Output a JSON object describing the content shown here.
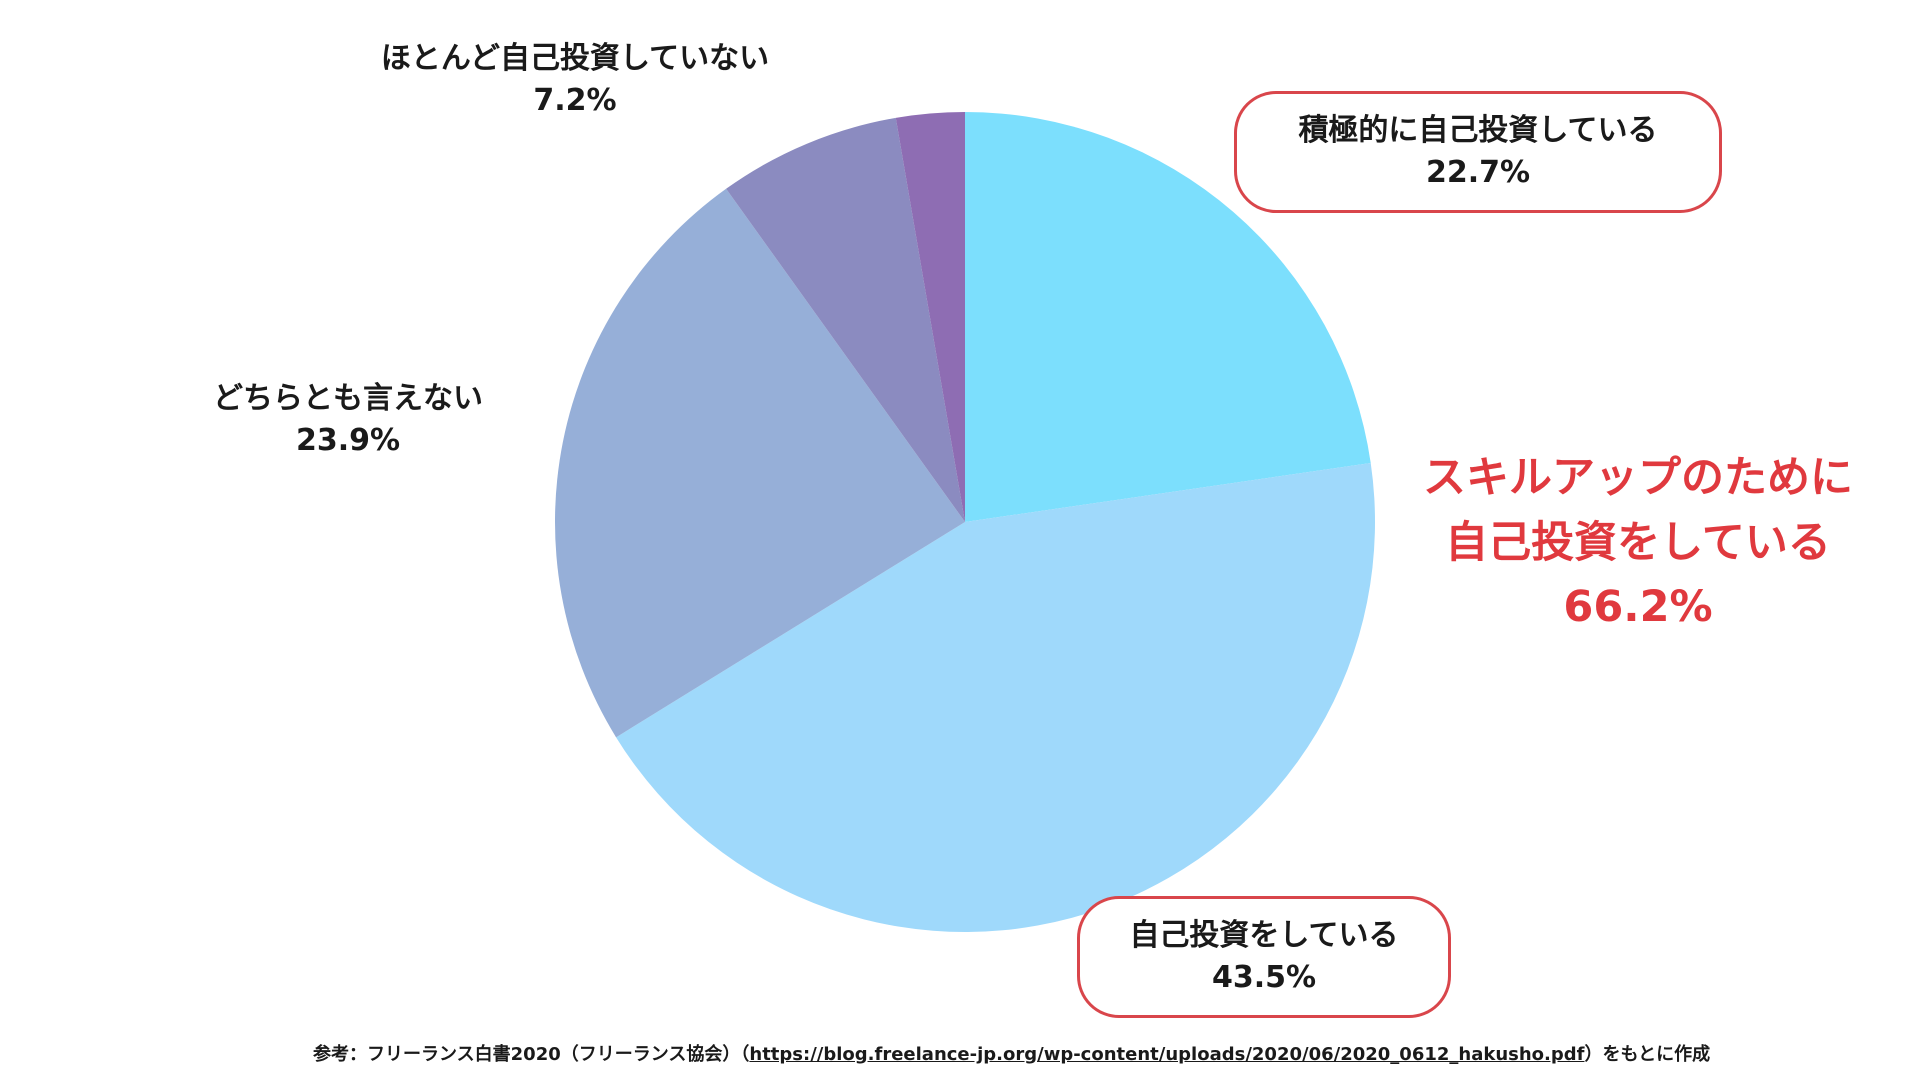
{
  "chart_data": {
    "type": "pie",
    "start": "12 o'clock",
    "direction": "clockwise",
    "slices": [
      {
        "label": "積極的に自己投資している",
        "value": 22.7,
        "value_label": "22.7%",
        "color": "#7cdffd"
      },
      {
        "label": "自己投資をしている",
        "value": 43.5,
        "value_label": "43.5%",
        "color": "#9fd9fb"
      },
      {
        "label": "どちらとも言えない",
        "value": 23.9,
        "value_label": "23.9%",
        "color": "#96afd8"
      },
      {
        "label": "ほとんど自己投資していない",
        "value": 7.2,
        "value_label": "7.2%",
        "color": "#8b8bc0"
      },
      {
        "label": "",
        "value": 2.7,
        "value_label": "",
        "color": "#8e6db3"
      }
    ]
  },
  "highlight": {
    "line1": "スキルアップのために",
    "line2": "自己投資をしている",
    "value": "66.2%",
    "color": "#e0393e"
  },
  "source": {
    "prefix": "参考：フリーランス白書2020（フリーランス協会）（",
    "url": "https://blog.freelance-jp.org/wp-content/uploads/2020/06/2020_0612_hakusho.pdf",
    "suffix": "）をもとに作成"
  }
}
